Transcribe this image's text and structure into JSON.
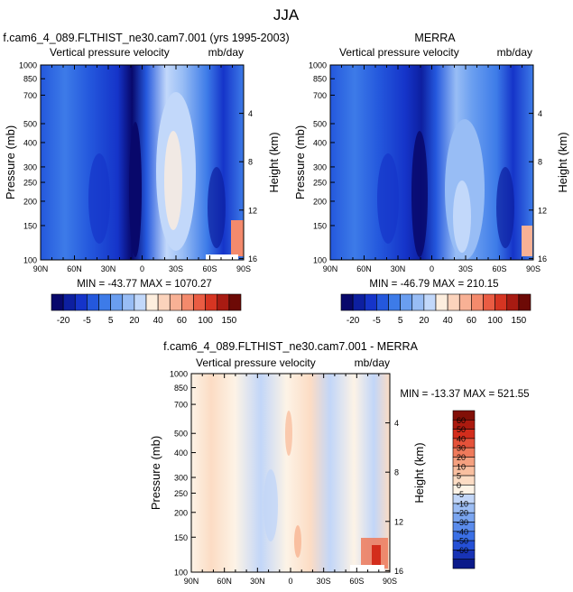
{
  "figure_title": "JJA",
  "colors": {
    "cbar_top": [
      "#08086b",
      "#0d1fa0",
      "#1534c9",
      "#2458dd",
      "#3d7be8",
      "#6a9ef0",
      "#98bdf5",
      "#c2d8fa",
      "#fdeede",
      "#fbd3bc",
      "#f8b195",
      "#f48a6c",
      "#ea5c43",
      "#d63522",
      "#a81b12",
      "#6d0a06"
    ],
    "cbar_diff": [
      "#0b1a8a",
      "#1833b5",
      "#2550d6",
      "#3b70e6",
      "#5b8cec",
      "#7aa5f0",
      "#9cbdf4",
      "#c2d6f8",
      "#fdf3e6",
      "#fcdcc4",
      "#f9bfa0",
      "#f5a07f",
      "#ef7a5b",
      "#e5523a",
      "#d32d1c",
      "#ab1a0f",
      "#821008"
    ]
  },
  "chart_data": [
    {
      "type": "heatmap",
      "name": "model",
      "title": "f.cam6_4_089.FLTHIST_ne30.cam7.001 (yrs 1995-2003)",
      "left_label": "Vertical pressure velocity",
      "right_label": "mb/day",
      "xlabel": "",
      "ylabel": "Pressure (mb)",
      "y2label": "Height (km)",
      "xlim": [
        90,
        -90
      ],
      "x_ticks": [
        "90N",
        "60N",
        "30N",
        "0",
        "30S",
        "60S",
        "90S"
      ],
      "ylim": [
        1000,
        100
      ],
      "y_ticks": [
        "100",
        "150",
        "200",
        "250",
        "300",
        "400",
        "500",
        "700",
        "850",
        "1000"
      ],
      "y2_ticks": [
        "4",
        "8",
        "12",
        "16"
      ],
      "stats": "MIN = -43.77   MAX = 1070.27",
      "colorbar_labels": [
        "-20",
        "-5",
        "5",
        "20",
        "40",
        "60",
        "100",
        "150"
      ]
    },
    {
      "type": "heatmap",
      "name": "obs",
      "title": "MERRA",
      "left_label": "Vertical pressure velocity",
      "right_label": "mb/day",
      "xlabel": "",
      "ylabel": "Pressure (mb)",
      "y2label": "Height (km)",
      "xlim": [
        90,
        -90
      ],
      "x_ticks": [
        "90N",
        "60N",
        "30N",
        "0",
        "30S",
        "60S",
        "90S"
      ],
      "ylim": [
        1000,
        100
      ],
      "y_ticks": [
        "100",
        "150",
        "200",
        "250",
        "300",
        "400",
        "500",
        "700",
        "850",
        "1000"
      ],
      "y2_ticks": [
        "4",
        "8",
        "12",
        "16"
      ],
      "stats": "MIN = -46.79   MAX = 210.15",
      "colorbar_labels": [
        "-20",
        "-5",
        "5",
        "20",
        "40",
        "60",
        "100",
        "150"
      ]
    },
    {
      "type": "heatmap",
      "name": "diff",
      "title": "f.cam6_4_089.FLTHIST_ne30.cam7.001 - MERRA",
      "left_label": "Vertical pressure velocity",
      "right_label": "mb/day",
      "xlabel": "",
      "ylabel": "Pressure (mb)",
      "y2label": "Height (km)",
      "xlim": [
        90,
        -90
      ],
      "x_ticks": [
        "90N",
        "60N",
        "30N",
        "0",
        "30S",
        "60S",
        "90S"
      ],
      "ylim": [
        1000,
        100
      ],
      "y_ticks": [
        "100",
        "150",
        "200",
        "250",
        "300",
        "400",
        "500",
        "700",
        "850",
        "1000"
      ],
      "y2_ticks": [
        "4",
        "8",
        "12",
        "16"
      ],
      "stats": "MIN = -13.37   MAX = 521.55",
      "colorbar_labels": [
        "60",
        "50",
        "40",
        "30",
        "20",
        "10",
        "5",
        "0",
        "-5",
        "-10",
        "-20",
        "-30",
        "-40",
        "-50",
        "-60"
      ]
    }
  ]
}
